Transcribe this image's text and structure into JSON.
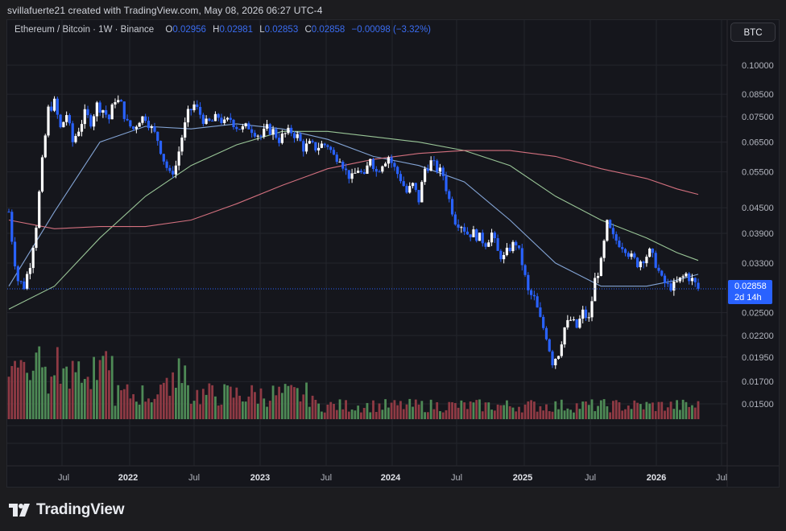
{
  "header": {
    "credit": "svillafuerte21 created with TradingView.com, May 08, 2026 06:27 UTC-4"
  },
  "legend": {
    "symbol": "Ethereum / Bitcoin · 1W · Binance",
    "open_label": "O",
    "open": "0.02956",
    "high_label": "H",
    "high": "0.02981",
    "low_label": "L",
    "low": "0.02853",
    "close_label": "C",
    "close": "0.02858",
    "change": "−0.00098 (−3.32%)"
  },
  "currency_button": "BTC",
  "price_tag": {
    "price": "0.02858",
    "countdown": "2d 14h"
  },
  "brand": {
    "name": "TradingView"
  },
  "colors": {
    "up": "#ffffff",
    "down": "#2962ff",
    "ma_short": "#8fb4ea",
    "ma_mid": "#a7d8a4",
    "ma_long": "#e87a8a",
    "vol_up": "#4e8a56",
    "vol_down": "#8f3a44",
    "grid": "#24252c",
    "axis_text": "#b2b5be",
    "current_line": "#2962ff"
  },
  "chart_data": {
    "type": "candlestick",
    "interval": "1W",
    "scale": "log",
    "ylim": [
      0.014,
      0.11
    ],
    "price_ticks": [
      "0.10000",
      "0.08500",
      "0.07500",
      "0.06500",
      "0.05500",
      "0.04500",
      "0.03900",
      "0.03300",
      "0.02500",
      "0.02200",
      "0.01950",
      "0.01700",
      "0.01500"
    ],
    "time_labels": [
      "Jul",
      "2022",
      "Jul",
      "2023",
      "Jul",
      "2024",
      "Jul",
      "2025",
      "Jul",
      "2026",
      "Jul"
    ],
    "last_price": 0.02858,
    "close_path": [
      {
        "t": 0.0,
        "c": 0.044
      },
      {
        "t": 1.5,
        "c": 0.035
      },
      {
        "t": 3,
        "c": 0.03
      },
      {
        "t": 5,
        "c": 0.029
      },
      {
        "t": 7,
        "c": 0.033
      },
      {
        "t": 9,
        "c": 0.041
      },
      {
        "t": 11,
        "c": 0.058
      },
      {
        "t": 13,
        "c": 0.078
      },
      {
        "t": 15,
        "c": 0.081
      },
      {
        "t": 17,
        "c": 0.07
      },
      {
        "t": 19,
        "c": 0.076
      },
      {
        "t": 21,
        "c": 0.065
      },
      {
        "t": 23,
        "c": 0.07
      },
      {
        "t": 25,
        "c": 0.076
      },
      {
        "t": 27,
        "c": 0.073
      },
      {
        "t": 29,
        "c": 0.08
      },
      {
        "t": 31,
        "c": 0.078
      },
      {
        "t": 33,
        "c": 0.074
      },
      {
        "t": 35,
        "c": 0.083
      },
      {
        "t": 37,
        "c": 0.08
      },
      {
        "t": 39,
        "c": 0.072
      },
      {
        "t": 41,
        "c": 0.07
      },
      {
        "t": 43,
        "c": 0.074
      },
      {
        "t": 45,
        "c": 0.075
      },
      {
        "t": 47,
        "c": 0.07
      },
      {
        "t": 49,
        "c": 0.066
      },
      {
        "t": 51,
        "c": 0.059
      },
      {
        "t": 53,
        "c": 0.054
      },
      {
        "t": 55,
        "c": 0.057
      },
      {
        "t": 57,
        "c": 0.067
      },
      {
        "t": 59,
        "c": 0.076
      },
      {
        "t": 61,
        "c": 0.08
      },
      {
        "t": 63,
        "c": 0.076
      },
      {
        "t": 65,
        "c": 0.072
      },
      {
        "t": 67,
        "c": 0.073
      },
      {
        "t": 69,
        "c": 0.075
      },
      {
        "t": 71,
        "c": 0.072
      },
      {
        "t": 73,
        "c": 0.074
      },
      {
        "t": 75,
        "c": 0.071
      },
      {
        "t": 77,
        "c": 0.07
      },
      {
        "t": 79,
        "c": 0.071
      },
      {
        "t": 81,
        "c": 0.069
      },
      {
        "t": 83,
        "c": 0.067
      },
      {
        "t": 85,
        "c": 0.07
      },
      {
        "t": 87,
        "c": 0.069
      },
      {
        "t": 89,
        "c": 0.066
      },
      {
        "t": 91,
        "c": 0.068
      },
      {
        "t": 93,
        "c": 0.069
      },
      {
        "t": 95,
        "c": 0.067
      },
      {
        "t": 97,
        "c": 0.063
      },
      {
        "t": 99,
        "c": 0.064
      },
      {
        "t": 101,
        "c": 0.063
      },
      {
        "t": 103,
        "c": 0.064
      },
      {
        "t": 105,
        "c": 0.064
      },
      {
        "t": 107,
        "c": 0.06
      },
      {
        "t": 109,
        "c": 0.06
      },
      {
        "t": 111,
        "c": 0.055
      },
      {
        "t": 113,
        "c": 0.053
      },
      {
        "t": 115,
        "c": 0.056
      },
      {
        "t": 117,
        "c": 0.053
      },
      {
        "t": 119,
        "c": 0.06
      },
      {
        "t": 121,
        "c": 0.055
      },
      {
        "t": 123,
        "c": 0.058
      },
      {
        "t": 125,
        "c": 0.06
      },
      {
        "t": 127,
        "c": 0.056
      },
      {
        "t": 129,
        "c": 0.053
      },
      {
        "t": 131,
        "c": 0.049
      },
      {
        "t": 133,
        "c": 0.051
      },
      {
        "t": 135,
        "c": 0.047
      },
      {
        "t": 137,
        "c": 0.056
      },
      {
        "t": 139,
        "c": 0.058
      },
      {
        "t": 141,
        "c": 0.056
      },
      {
        "t": 143,
        "c": 0.054
      },
      {
        "t": 145,
        "c": 0.047
      },
      {
        "t": 147,
        "c": 0.042
      },
      {
        "t": 149,
        "c": 0.041
      },
      {
        "t": 151,
        "c": 0.039
      },
      {
        "t": 153,
        "c": 0.039
      },
      {
        "t": 155,
        "c": 0.038
      },
      {
        "t": 157,
        "c": 0.037
      },
      {
        "t": 159,
        "c": 0.039
      },
      {
        "t": 161,
        "c": 0.035
      },
      {
        "t": 163,
        "c": 0.034
      },
      {
        "t": 165,
        "c": 0.036
      },
      {
        "t": 167,
        "c": 0.037
      },
      {
        "t": 169,
        "c": 0.033
      },
      {
        "t": 171,
        "c": 0.028
      },
      {
        "t": 173,
        "c": 0.027
      },
      {
        "t": 175,
        "c": 0.024
      },
      {
        "t": 177,
        "c": 0.022
      },
      {
        "t": 179,
        "c": 0.019
      },
      {
        "t": 181,
        "c": 0.02
      },
      {
        "t": 183,
        "c": 0.023
      },
      {
        "t": 185,
        "c": 0.024
      },
      {
        "t": 187,
        "c": 0.023
      },
      {
        "t": 189,
        "c": 0.025
      },
      {
        "t": 191,
        "c": 0.024
      },
      {
        "t": 193,
        "c": 0.03
      },
      {
        "t": 195,
        "c": 0.033
      },
      {
        "t": 197,
        "c": 0.041
      },
      {
        "t": 199,
        "c": 0.038
      },
      {
        "t": 201,
        "c": 0.037
      },
      {
        "t": 203,
        "c": 0.036
      },
      {
        "t": 205,
        "c": 0.034
      },
      {
        "t": 207,
        "c": 0.033
      },
      {
        "t": 209,
        "c": 0.034
      },
      {
        "t": 211,
        "c": 0.035
      },
      {
        "t": 213,
        "c": 0.033
      },
      {
        "t": 215,
        "c": 0.03
      },
      {
        "t": 217,
        "c": 0.029
      },
      {
        "t": 219,
        "c": 0.029
      },
      {
        "t": 221,
        "c": 0.03
      },
      {
        "t": 223,
        "c": 0.031
      },
      {
        "t": 225,
        "c": 0.03
      },
      {
        "t": 227,
        "c": 0.0286
      }
    ],
    "ma_short": [
      [
        0,
        0.029
      ],
      [
        15,
        0.044
      ],
      [
        30,
        0.065
      ],
      [
        45,
        0.071
      ],
      [
        60,
        0.07
      ],
      [
        75,
        0.072
      ],
      [
        90,
        0.07
      ],
      [
        105,
        0.066
      ],
      [
        120,
        0.06
      ],
      [
        135,
        0.057
      ],
      [
        150,
        0.052
      ],
      [
        165,
        0.042
      ],
      [
        180,
        0.033
      ],
      [
        195,
        0.029
      ],
      [
        210,
        0.029
      ],
      [
        220,
        0.03
      ],
      [
        227,
        0.031
      ]
    ],
    "ma_mid": [
      [
        0,
        0.0255
      ],
      [
        15,
        0.029
      ],
      [
        30,
        0.038
      ],
      [
        45,
        0.048
      ],
      [
        60,
        0.057
      ],
      [
        75,
        0.064
      ],
      [
        90,
        0.069
      ],
      [
        105,
        0.069
      ],
      [
        120,
        0.067
      ],
      [
        135,
        0.065
      ],
      [
        150,
        0.062
      ],
      [
        165,
        0.057
      ],
      [
        180,
        0.048
      ],
      [
        195,
        0.042
      ],
      [
        210,
        0.038
      ],
      [
        220,
        0.035
      ],
      [
        227,
        0.0335
      ]
    ],
    "ma_long": [
      [
        0,
        0.042
      ],
      [
        15,
        0.04
      ],
      [
        30,
        0.0405
      ],
      [
        45,
        0.0405
      ],
      [
        60,
        0.042
      ],
      [
        75,
        0.046
      ],
      [
        90,
        0.051
      ],
      [
        105,
        0.056
      ],
      [
        120,
        0.059
      ],
      [
        135,
        0.061
      ],
      [
        150,
        0.062
      ],
      [
        165,
        0.062
      ],
      [
        180,
        0.06
      ],
      [
        195,
        0.056
      ],
      [
        210,
        0.053
      ],
      [
        220,
        0.05
      ],
      [
        227,
        0.0485
      ]
    ]
  }
}
